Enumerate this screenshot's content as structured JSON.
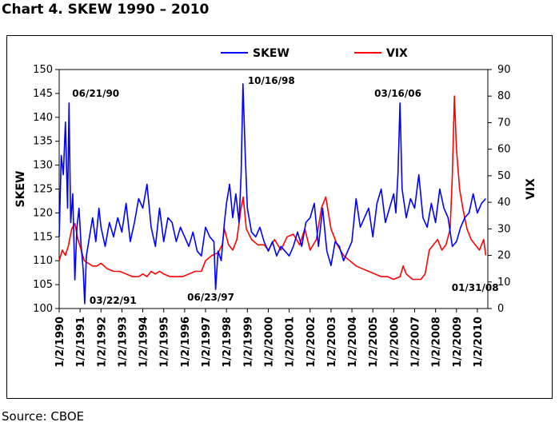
{
  "page": {
    "title": "Chart 4. SKEW 1990 – 2010",
    "source": "Source: CBOE"
  },
  "colors": {
    "skew": "#0000ff",
    "vix": "#ff0000",
    "axis": "#000000"
  },
  "chart_data": {
    "type": "line",
    "legend": {
      "position": "top-center",
      "entries": [
        "SKEW",
        "VIX"
      ]
    },
    "grid": false,
    "x_tick_labels": [
      "1/2/1990",
      "1/2/1991",
      "1/2/1992",
      "1/2/1993",
      "1/2/1994",
      "1/2/1995",
      "1/2/1996",
      "1/2/1997",
      "1/2/1998",
      "1/2/1999",
      "1/2/2000",
      "1/2/2001",
      "1/2/2002",
      "1/2/2003",
      "1/2/2004",
      "1/2/2005",
      "1/2/2006",
      "1/2/2007",
      "1/2/2008",
      "1/2/2009",
      "1/2/2010"
    ],
    "x_range": [
      1990.0,
      2010.5
    ],
    "y_left": {
      "label": "SKEW",
      "range": [
        100,
        150
      ],
      "ticks": [
        100,
        105,
        110,
        115,
        120,
        125,
        130,
        135,
        140,
        145,
        150
      ]
    },
    "y_right": {
      "label": "VIX",
      "range": [
        0,
        90
      ],
      "ticks": [
        0,
        10,
        20,
        30,
        40,
        50,
        60,
        70,
        80,
        90
      ]
    },
    "series": [
      {
        "name": "SKEW",
        "axis": "left",
        "x": [
          1990.0,
          1990.1,
          1990.2,
          1990.3,
          1990.4,
          1990.47,
          1990.55,
          1990.65,
          1990.75,
          1990.85,
          1990.95,
          1991.05,
          1991.15,
          1991.22,
          1991.3,
          1991.45,
          1991.6,
          1991.75,
          1991.9,
          1992.0,
          1992.2,
          1992.4,
          1992.6,
          1992.8,
          1993.0,
          1993.2,
          1993.4,
          1993.6,
          1993.8,
          1994.0,
          1994.2,
          1994.4,
          1994.6,
          1994.8,
          1995.0,
          1995.2,
          1995.4,
          1995.6,
          1995.8,
          1996.0,
          1996.2,
          1996.4,
          1996.6,
          1996.8,
          1997.0,
          1997.2,
          1997.4,
          1997.48,
          1997.6,
          1997.75,
          1997.9,
          1998.0,
          1998.15,
          1998.3,
          1998.45,
          1998.6,
          1998.7,
          1998.79,
          1998.9,
          1999.0,
          1999.2,
          1999.4,
          1999.6,
          1999.8,
          2000.0,
          2000.2,
          2000.4,
          2000.6,
          2000.8,
          2001.0,
          2001.2,
          2001.4,
          2001.6,
          2001.8,
          2002.0,
          2002.2,
          2002.4,
          2002.6,
          2002.8,
          2003.0,
          2003.2,
          2003.4,
          2003.6,
          2003.8,
          2004.0,
          2004.2,
          2004.4,
          2004.6,
          2004.8,
          2005.0,
          2005.2,
          2005.4,
          2005.6,
          2005.8,
          2006.0,
          2006.1,
          2006.2,
          2006.3,
          2006.4,
          2006.6,
          2006.8,
          2007.0,
          2007.2,
          2007.4,
          2007.6,
          2007.8,
          2008.0,
          2008.2,
          2008.4,
          2008.6,
          2008.8,
          2009.0,
          2009.2,
          2009.4,
          2009.6,
          2009.8,
          2010.0,
          2010.2,
          2010.4
        ],
        "y": [
          115,
          132,
          128,
          139,
          121,
          143,
          118,
          124,
          106,
          117,
          121,
          113,
          108,
          101,
          111,
          115,
          119,
          114,
          121,
          117,
          113,
          118,
          115,
          119,
          116,
          122,
          114,
          118,
          123,
          121,
          126,
          117,
          113,
          121,
          114,
          119,
          118,
          114,
          117,
          115,
          113,
          116,
          112,
          111,
          117,
          115,
          114,
          104,
          112,
          110,
          118,
          122,
          126,
          119,
          124,
          118,
          128,
          147,
          132,
          121,
          116,
          115,
          117,
          114,
          112,
          114,
          111,
          113,
          112,
          111,
          113,
          116,
          113,
          118,
          119,
          122,
          113,
          121,
          112,
          109,
          114,
          113,
          110,
          112,
          114,
          123,
          117,
          119,
          121,
          115,
          122,
          125,
          118,
          121,
          124,
          120,
          128,
          143,
          125,
          119,
          123,
          121,
          128,
          119,
          117,
          122,
          118,
          125,
          121,
          119,
          113,
          114,
          117,
          119,
          120,
          124,
          120,
          122,
          123
        ]
      },
      {
        "name": "VIX",
        "axis": "right",
        "x": [
          1990.0,
          1990.15,
          1990.3,
          1990.45,
          1990.6,
          1990.75,
          1990.9,
          1991.05,
          1991.2,
          1991.4,
          1991.6,
          1991.8,
          1992.0,
          1992.3,
          1992.6,
          1992.9,
          1993.2,
          1993.5,
          1993.8,
          1994.0,
          1994.2,
          1994.4,
          1994.6,
          1994.8,
          1995.0,
          1995.3,
          1995.6,
          1995.9,
          1996.2,
          1996.5,
          1996.8,
          1997.0,
          1997.3,
          1997.6,
          1997.8,
          1997.9,
          1998.1,
          1998.3,
          1998.5,
          1998.7,
          1998.8,
          1998.95,
          1999.2,
          1999.5,
          1999.8,
          2000.0,
          2000.3,
          2000.6,
          2000.9,
          2001.2,
          2001.5,
          2001.75,
          2002.0,
          2002.3,
          2002.55,
          2002.75,
          2003.0,
          2003.3,
          2003.6,
          2003.9,
          2004.2,
          2004.5,
          2004.8,
          2005.1,
          2005.4,
          2005.7,
          2006.0,
          2006.3,
          2006.45,
          2006.6,
          2006.9,
          2007.1,
          2007.3,
          2007.5,
          2007.7,
          2007.9,
          2008.1,
          2008.3,
          2008.5,
          2008.7,
          2008.8,
          2008.9,
          2009.0,
          2009.15,
          2009.3,
          2009.5,
          2009.7,
          2009.9,
          2010.1,
          2010.3,
          2010.4
        ],
        "y": [
          18,
          22,
          20,
          24,
          30,
          32,
          26,
          22,
          18,
          17,
          16,
          16,
          17,
          15,
          14,
          14,
          13,
          12,
          12,
          13,
          12,
          14,
          13,
          14,
          13,
          12,
          12,
          12,
          13,
          14,
          14,
          18,
          20,
          21,
          24,
          30,
          24,
          22,
          26,
          38,
          42,
          30,
          26,
          24,
          24,
          22,
          26,
          22,
          27,
          28,
          24,
          30,
          22,
          26,
          38,
          42,
          30,
          24,
          20,
          18,
          16,
          15,
          14,
          13,
          12,
          12,
          11,
          12,
          16,
          13,
          11,
          11,
          11,
          13,
          22,
          24,
          26,
          22,
          24,
          30,
          50,
          80,
          60,
          45,
          38,
          30,
          26,
          24,
          22,
          26,
          20
        ]
      }
    ],
    "annotations": [
      {
        "text": "06/21/90",
        "x": 1990.47,
        "y": 143,
        "axis": "left",
        "anchor": "above-right"
      },
      {
        "text": "03/22/91",
        "x": 1991.22,
        "y": 101,
        "axis": "left",
        "anchor": "right"
      },
      {
        "text": "06/23/97",
        "x": 1997.48,
        "y": 104,
        "axis": "left",
        "anchor": "below"
      },
      {
        "text": "10/16/98",
        "x": 1998.79,
        "y": 147,
        "axis": "left",
        "anchor": "right"
      },
      {
        "text": "03/16/06",
        "x": 2006.2,
        "y": 143,
        "axis": "left",
        "anchor": "above"
      },
      {
        "text": "01/31/08",
        "x": 2008.08,
        "y": 105,
        "axis": "left",
        "anchor": "below-right"
      }
    ]
  }
}
